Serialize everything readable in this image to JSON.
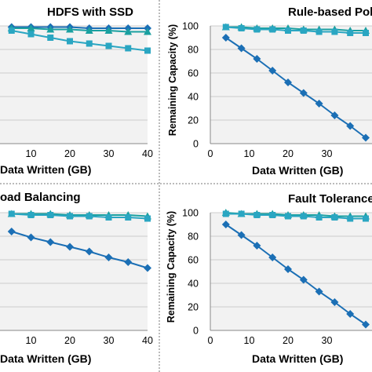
{
  "colors": {
    "series_a": "#1b6fb5",
    "series_b": "#2aa6c2",
    "series_c": "#1aa0a0",
    "grid": "#bfbfbf",
    "plot_bg": "#f2f2f2",
    "divider": "#777777"
  },
  "chart_data": [
    {
      "type": "line",
      "title": "HDFS with SSD",
      "xlabel": "Data Written (GB)",
      "ylabel": "",
      "xlim": [
        0,
        42
      ],
      "ylim": [
        0,
        100
      ],
      "xticks": [
        "10",
        "20",
        "30",
        "40"
      ],
      "yticks": [],
      "grid": true,
      "series": [
        {
          "marker": "diamond",
          "color": "#1b6fb5",
          "x": [
            0,
            5,
            10,
            15,
            20,
            25,
            30,
            35,
            40
          ],
          "y": [
            100,
            99,
            99,
            99,
            99,
            98,
            98,
            98,
            98
          ]
        },
        {
          "marker": "triangle",
          "color": "#1aa0a0",
          "x": [
            0,
            5,
            10,
            15,
            20,
            25,
            30,
            35,
            40
          ],
          "y": [
            100,
            98,
            98,
            97,
            97,
            96,
            96,
            95,
            95
          ]
        },
        {
          "marker": "square",
          "color": "#2aa6c2",
          "x": [
            0,
            5,
            10,
            15,
            20,
            25,
            30,
            35,
            40
          ],
          "y": [
            100,
            96,
            93,
            90,
            87,
            85,
            83,
            81,
            79
          ]
        }
      ]
    },
    {
      "type": "line",
      "title": "Rule-based Policy",
      "xlabel": "Data Written (GB)",
      "ylabel": "Remaining Capacity (%)",
      "xlim": [
        0,
        42
      ],
      "ylim": [
        0,
        100
      ],
      "xticks": [
        "0",
        "10",
        "20",
        "30"
      ],
      "yticks": [
        "0",
        "20",
        "40",
        "60",
        "80",
        "100"
      ],
      "grid": true,
      "series": [
        {
          "marker": "diamond",
          "color": "#1b6fb5",
          "x": [
            4,
            8,
            12,
            16,
            20,
            24,
            28,
            32,
            36,
            40
          ],
          "y": [
            90,
            81,
            72,
            62,
            52,
            43,
            34,
            24,
            15,
            5
          ]
        },
        {
          "marker": "triangle",
          "color": "#1aa0a0",
          "x": [
            4,
            8,
            12,
            16,
            20,
            24,
            28,
            32,
            36,
            40
          ],
          "y": [
            99,
            99,
            98,
            98,
            98,
            97,
            97,
            97,
            96,
            96
          ]
        },
        {
          "marker": "square",
          "color": "#2aa6c2",
          "x": [
            4,
            8,
            12,
            16,
            20,
            24,
            28,
            32,
            36,
            40
          ],
          "y": [
            99,
            98,
            97,
            97,
            96,
            96,
            95,
            95,
            94,
            94
          ]
        }
      ]
    },
    {
      "type": "line",
      "title": "oad Balancing",
      "xlabel": "Data Written (GB)",
      "ylabel": "",
      "xlim": [
        0,
        42
      ],
      "ylim": [
        0,
        100
      ],
      "xticks": [
        "10",
        "20",
        "30",
        "40"
      ],
      "yticks": [],
      "grid": true,
      "series": [
        {
          "marker": "diamond",
          "color": "#1b6fb5",
          "x": [
            0,
            5,
            10,
            15,
            20,
            25,
            30,
            35,
            40
          ],
          "y": [
            88,
            84,
            79,
            75,
            71,
            67,
            62,
            58,
            53
          ]
        },
        {
          "marker": "triangle",
          "color": "#1aa0a0",
          "x": [
            0,
            5,
            10,
            15,
            20,
            25,
            30,
            35,
            40
          ],
          "y": [
            100,
            99,
            99,
            99,
            98,
            98,
            98,
            98,
            97
          ]
        },
        {
          "marker": "square",
          "color": "#2aa6c2",
          "x": [
            0,
            5,
            10,
            15,
            20,
            25,
            30,
            35,
            40
          ],
          "y": [
            99,
            99,
            98,
            98,
            97,
            97,
            96,
            96,
            95
          ]
        }
      ]
    },
    {
      "type": "line",
      "title": "Fault Tolerance",
      "xlabel": "Data Written (GB)",
      "ylabel": "Remaining Capacity (%)",
      "xlim": [
        0,
        42
      ],
      "ylim": [
        0,
        100
      ],
      "xticks": [
        "0",
        "10",
        "20",
        "30"
      ],
      "yticks": [
        "0",
        "20",
        "40",
        "60",
        "80",
        "100"
      ],
      "grid": true,
      "series": [
        {
          "marker": "diamond",
          "color": "#1b6fb5",
          "x": [
            4,
            8,
            12,
            16,
            20,
            24,
            28,
            32,
            36,
            40
          ],
          "y": [
            90,
            81,
            72,
            62,
            52,
            43,
            33,
            24,
            14,
            5
          ]
        },
        {
          "marker": "triangle",
          "color": "#1aa0a0",
          "x": [
            4,
            8,
            12,
            16,
            20,
            24,
            28,
            32,
            36,
            40
          ],
          "y": [
            100,
            99,
            99,
            99,
            98,
            98,
            98,
            97,
            97,
            97
          ]
        },
        {
          "marker": "square",
          "color": "#2aa6c2",
          "x": [
            4,
            8,
            12,
            16,
            20,
            24,
            28,
            32,
            36,
            40
          ],
          "y": [
            99,
            99,
            98,
            98,
            97,
            97,
            96,
            96,
            95,
            95
          ]
        }
      ]
    }
  ]
}
